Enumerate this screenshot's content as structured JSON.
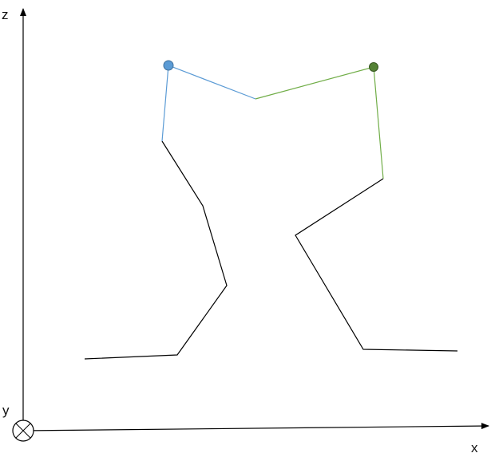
{
  "axes": {
    "z_label": "z",
    "x_label": "x",
    "y_label": "y",
    "into_page_symbol": "circled-x-icon"
  },
  "colors": {
    "axis": "#000000",
    "leg": "#000000",
    "left_link": "#5b9bd5",
    "left_joint_fill": "#5b9bd5",
    "left_joint_stroke": "#41719c",
    "right_link": "#70ad47",
    "right_joint_fill": "#548235",
    "right_joint_stroke": "#385723"
  }
}
